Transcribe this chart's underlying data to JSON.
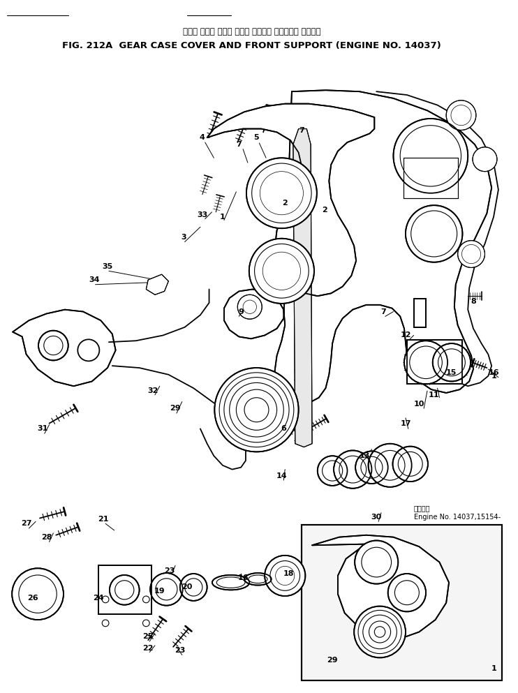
{
  "title_japanese": "ギヤー ケース カバー および フロント サポート・ 適用号機",
  "title_english": "FIG. 212A  GEAR CASE COVER AND FRONT SUPPORT (ENGINE NO. 14037)",
  "bg_color": "#ffffff",
  "line_color": "#000000",
  "fig_width": 7.42,
  "fig_height": 9.93,
  "dpi": 100,
  "inset_label_line1": "適用号機",
  "inset_label_line2": "Engine No. 14037,15154-"
}
